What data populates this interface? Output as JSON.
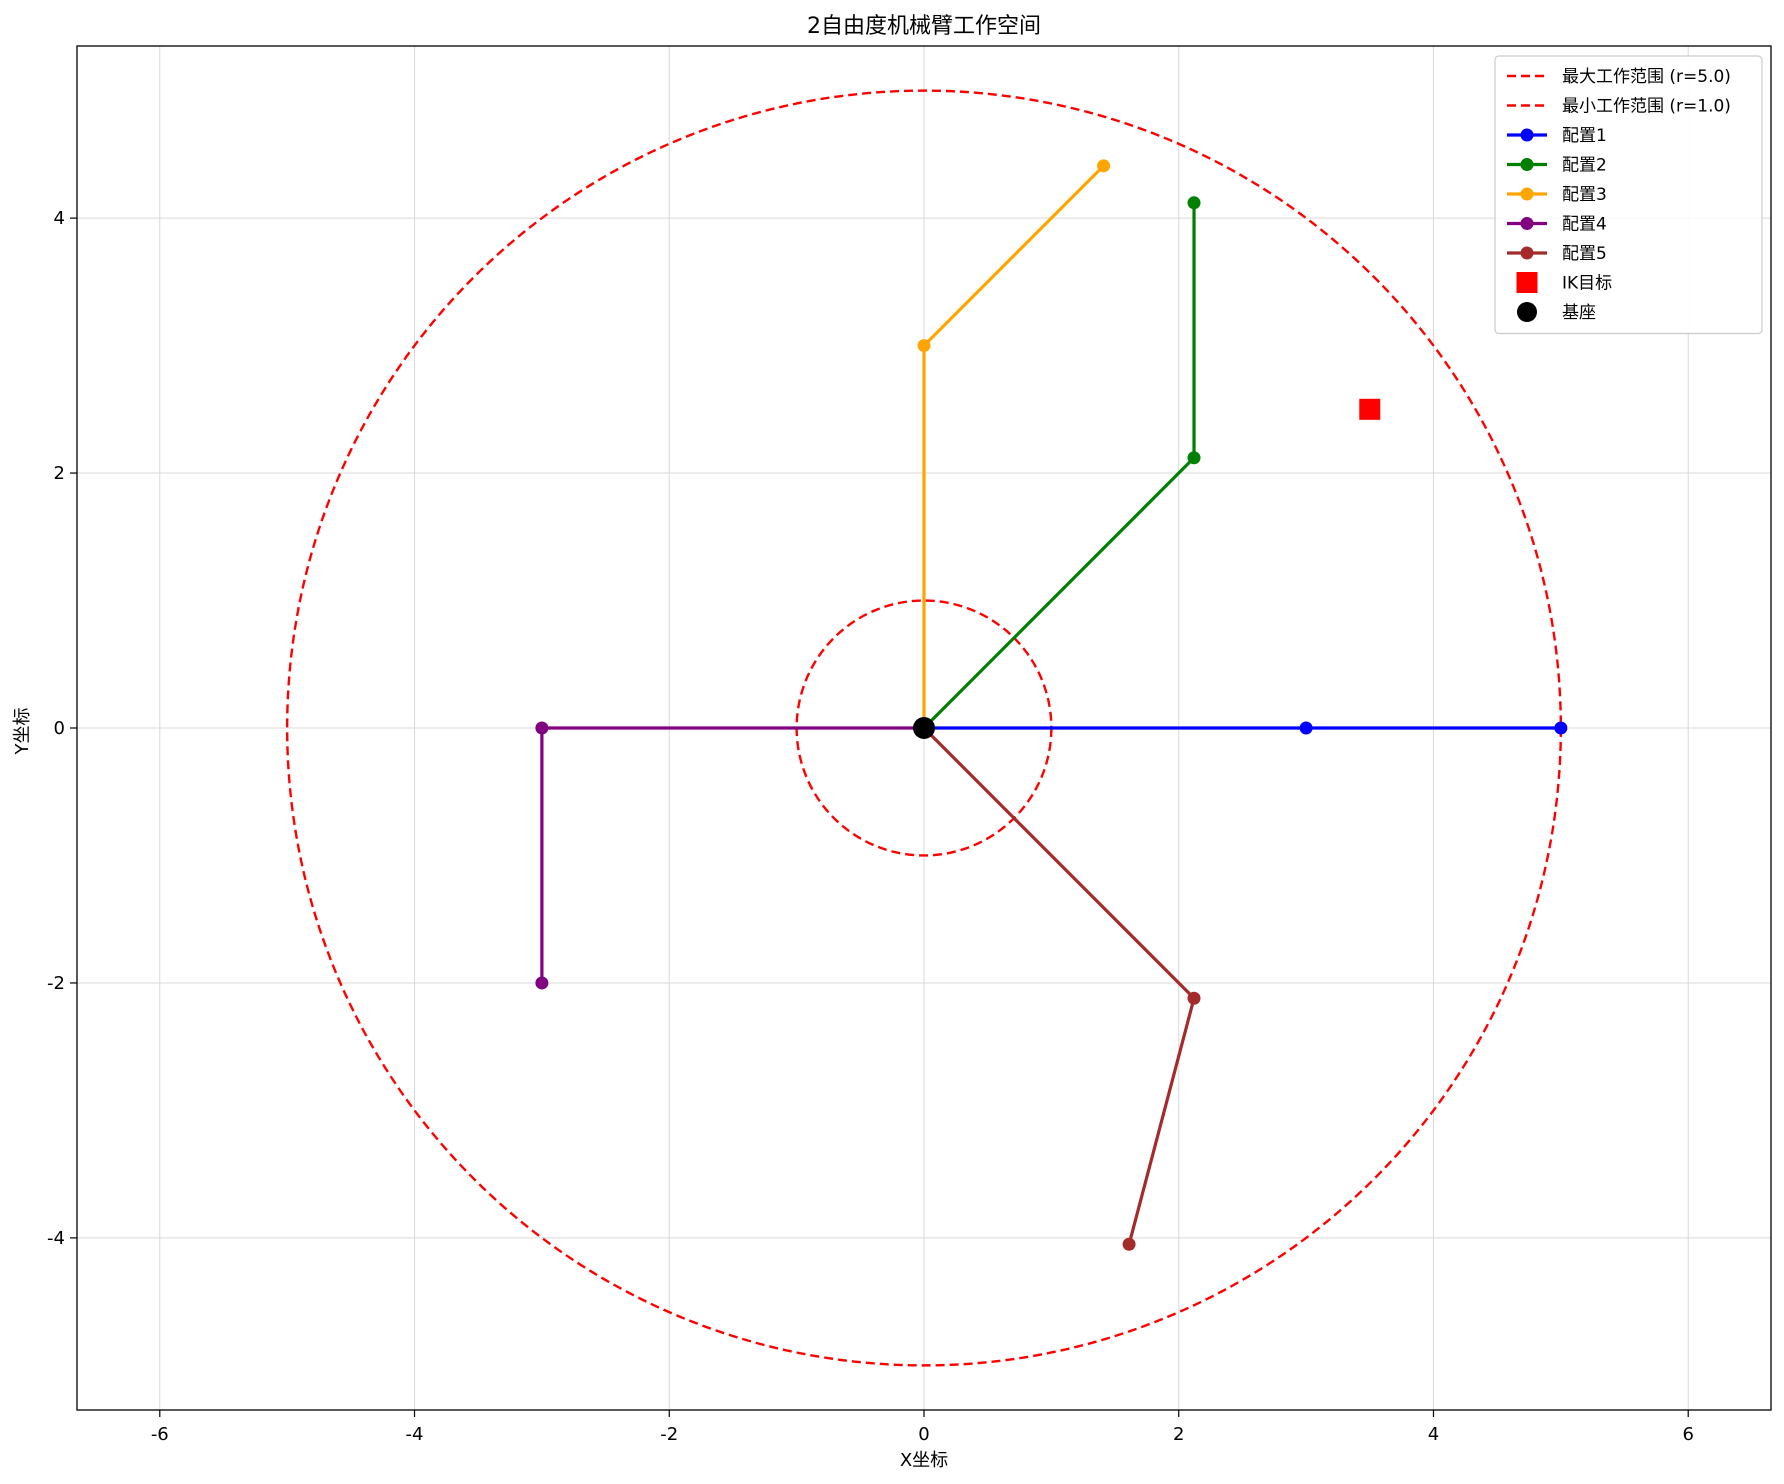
{
  "chart_data": {
    "type": "line",
    "title": "2自由度机械臂工作空间",
    "xlabel": "X坐标",
    "ylabel": "Y坐标",
    "xlim": [
      -6.65,
      6.65
    ],
    "ylim": [
      -5.35,
      5.35
    ],
    "xticks": [
      -6,
      -4,
      -2,
      0,
      2,
      4,
      6
    ],
    "yticks": [
      -4,
      -2,
      0,
      2,
      4
    ],
    "grid": true,
    "legend_position": "top-right",
    "circles": [
      {
        "name": "最大工作范围 (r=5.0)",
        "radius": 5.0,
        "color": "#ff0000",
        "style": "dashed"
      },
      {
        "name": "最小工作范围 (r=1.0)",
        "radius": 1.0,
        "color": "#ff0000",
        "style": "dashed"
      }
    ],
    "series": [
      {
        "name": "配置1",
        "color": "#0000ff",
        "points": [
          [
            0,
            0
          ],
          [
            3.0,
            0.0
          ],
          [
            5.0,
            0.0
          ]
        ]
      },
      {
        "name": "配置2",
        "color": "#008000",
        "points": [
          [
            0,
            0
          ],
          [
            2.12,
            2.12
          ],
          [
            2.12,
            4.12
          ]
        ]
      },
      {
        "name": "配置3",
        "color": "#ffa500",
        "points": [
          [
            0,
            0
          ],
          [
            0.0,
            3.0
          ],
          [
            1.41,
            4.41
          ]
        ]
      },
      {
        "name": "配置4",
        "color": "#800080",
        "points": [
          [
            0,
            0
          ],
          [
            -3.0,
            0.0
          ],
          [
            -3.0,
            -2.0
          ]
        ]
      },
      {
        "name": "配置5",
        "color": "#a52a2a",
        "points": [
          [
            0,
            0
          ],
          [
            2.12,
            -2.12
          ],
          [
            1.61,
            -4.05
          ]
        ]
      }
    ],
    "ik_target": {
      "name": "IK目标",
      "x": 3.5,
      "y": 2.5,
      "color": "#ff0000"
    },
    "base": {
      "name": "基座",
      "x": 0,
      "y": 0,
      "color": "#000000"
    }
  }
}
